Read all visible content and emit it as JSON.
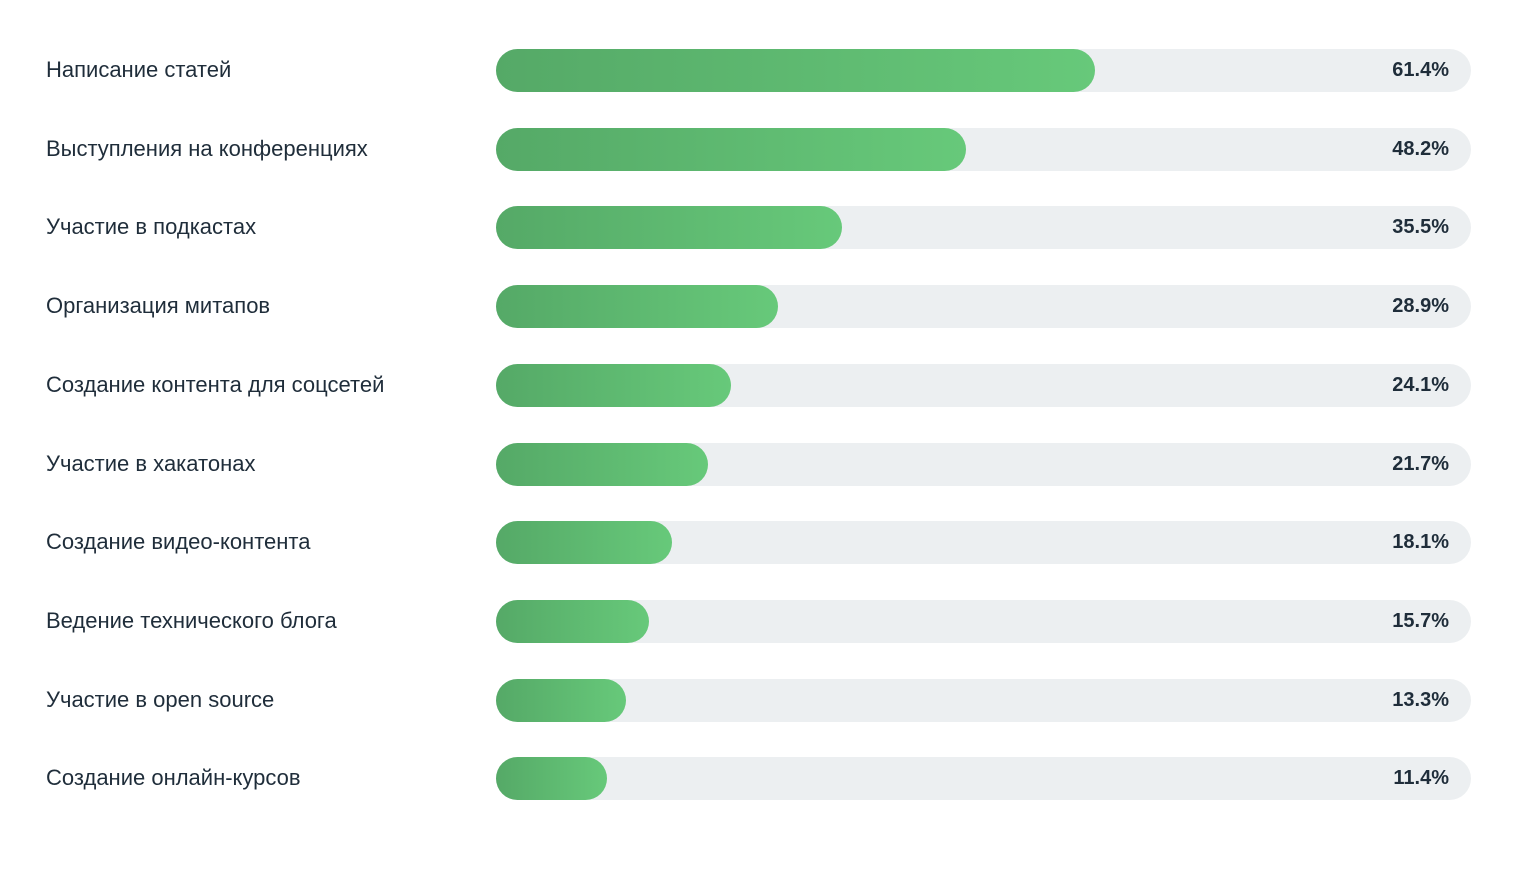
{
  "chart_data": {
    "type": "bar",
    "orientation": "horizontal",
    "title": "",
    "xlabel": "",
    "ylabel": "",
    "xlim": [
      0,
      100
    ],
    "unit": "%",
    "categories": [
      "Написание статей",
      "Выступления на конференциях",
      "Участие в подкастах",
      "Организация митапов",
      "Создание контента для соцсетей",
      "Участие в хакатонах",
      "Создание видео-контента",
      "Ведение технического блога",
      "Участие в open source",
      "Создание онлайн-курсов"
    ],
    "values": [
      61.4,
      48.2,
      35.5,
      28.9,
      24.1,
      21.7,
      18.1,
      15.7,
      13.3,
      11.4
    ],
    "value_labels": [
      "61.4%",
      "48.2%",
      "35.5%",
      "28.9%",
      "24.1%",
      "21.7%",
      "18.1%",
      "15.7%",
      "13.3%",
      "11.4%"
    ],
    "colors": {
      "bar_start": "#55a967",
      "bar_end": "#67c97a",
      "track": "#eceff1",
      "text": "#1f2d3a"
    }
  }
}
